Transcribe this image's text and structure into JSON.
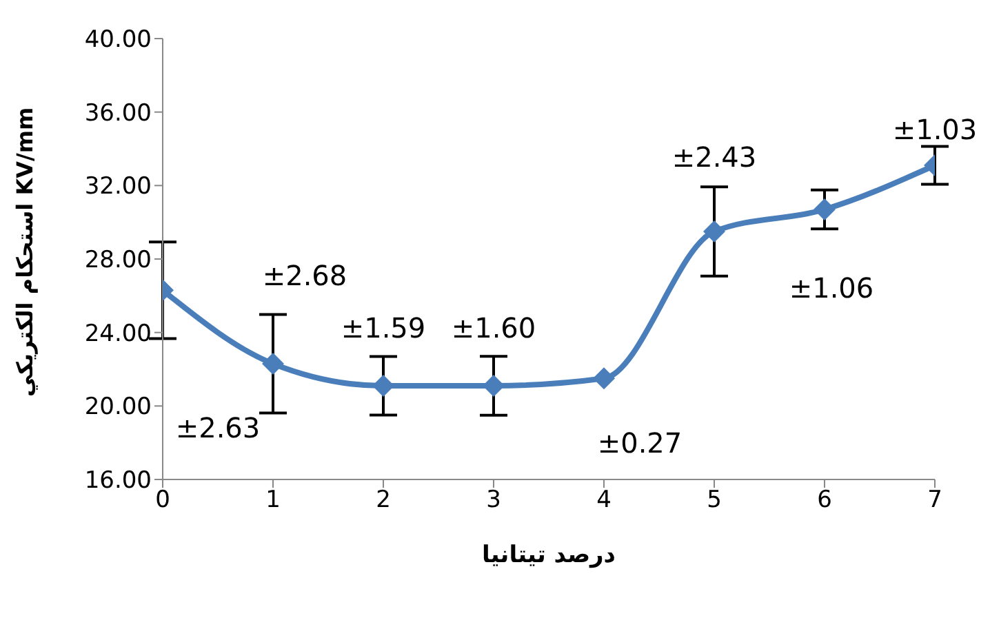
{
  "chart_data": {
    "type": "line",
    "xlabel": "درصد تيتانيا",
    "ylabel": "استحكام الكتريكي KV/mm",
    "x": [
      0,
      1,
      2,
      3,
      4,
      5,
      6,
      7
    ],
    "series": [
      {
        "color": "#4a7ebb",
        "values": [
          26.3,
          22.3,
          21.1,
          21.1,
          21.5,
          29.5,
          30.7,
          33.1
        ],
        "errors": [
          2.63,
          2.68,
          1.59,
          1.6,
          null,
          2.43,
          1.06,
          1.03
        ]
      }
    ],
    "annotations": [
      "±2.63",
      "±2.68",
      "±1.59",
      "±1.60",
      "±0.27",
      "±2.43",
      "±1.06",
      "±1.03"
    ],
    "xlim": [
      0,
      7
    ],
    "xticks": [
      0,
      1,
      2,
      3,
      4,
      5,
      6,
      7
    ],
    "ylim": [
      16,
      40
    ],
    "yticks": [
      {
        "value": 16,
        "label": "16.00"
      },
      {
        "value": 20,
        "label": "20.00"
      },
      {
        "value": 24,
        "label": "24.00"
      },
      {
        "value": 28,
        "label": "28.00"
      },
      {
        "value": 32,
        "label": "32.00"
      },
      {
        "value": 36,
        "label": "36.00"
      },
      {
        "value": 40,
        "label": "40.00"
      }
    ],
    "marker": "diamond",
    "grid": false,
    "legend": false
  }
}
